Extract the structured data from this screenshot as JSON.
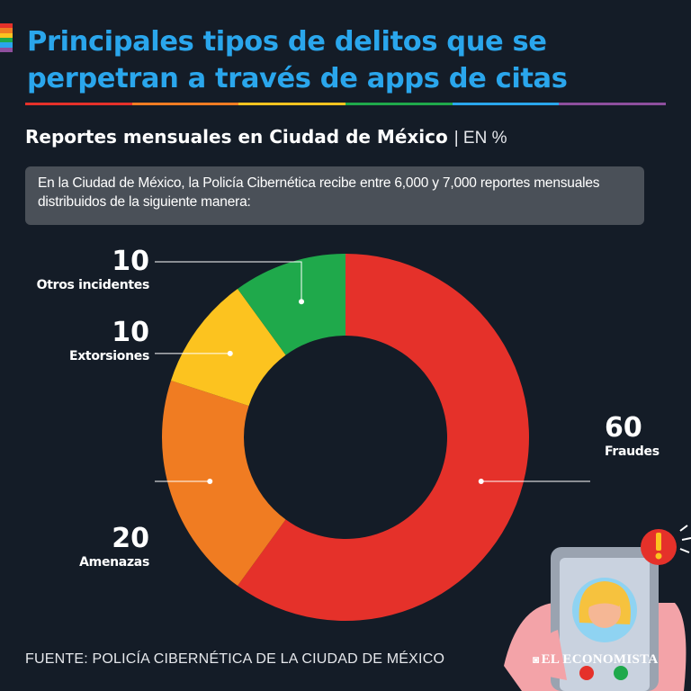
{
  "header": {
    "title_line1": "Principales tipos de delitos que se",
    "title_line2": "perpetran a través de apps de citas"
  },
  "subtitle": {
    "main": "Reportes mensuales en Ciudad de México",
    "unit": "| EN %"
  },
  "note": "En la Ciudad de México, la Policía Cibernética recibe entre 6,000 y 7,000 reportes mensuales distribuidos de la siguiente manera:",
  "chart_data": {
    "type": "pie",
    "donut": true,
    "title": "Reportes mensuales en Ciudad de México",
    "unit": "EN %",
    "categories": [
      "Fraudes",
      "Amenazas",
      "Extorsiones",
      "Otros incidentes"
    ],
    "values": [
      60,
      20,
      10,
      10
    ],
    "colors": [
      "#e5312a",
      "#f07c22",
      "#fcc31f",
      "#1fa94b"
    ],
    "start": "12 o'clock",
    "direction": "clockwise"
  },
  "labels": {
    "otros": {
      "value": "10",
      "name": "Otros incidentes"
    },
    "extorsiones": {
      "value": "10",
      "name": "Extorsiones"
    },
    "amenazas": {
      "value": "20",
      "name": "Amenazas"
    },
    "fraudes": {
      "value": "60",
      "name": "Fraudes"
    }
  },
  "footer": {
    "source": "FUENTE: POLICÍA CIBERNÉTICA DE LA CIUDAD DE MÉXICO",
    "brand": "EL ECONOMISTA"
  },
  "palette": {
    "background": "#141c27",
    "title": "#2aa6ec",
    "note_bg": "#4a5058",
    "rainbow": [
      "#e5312a",
      "#f07c22",
      "#fcc31f",
      "#1fa94b",
      "#2aa6ec",
      "#8e4f9e"
    ]
  }
}
